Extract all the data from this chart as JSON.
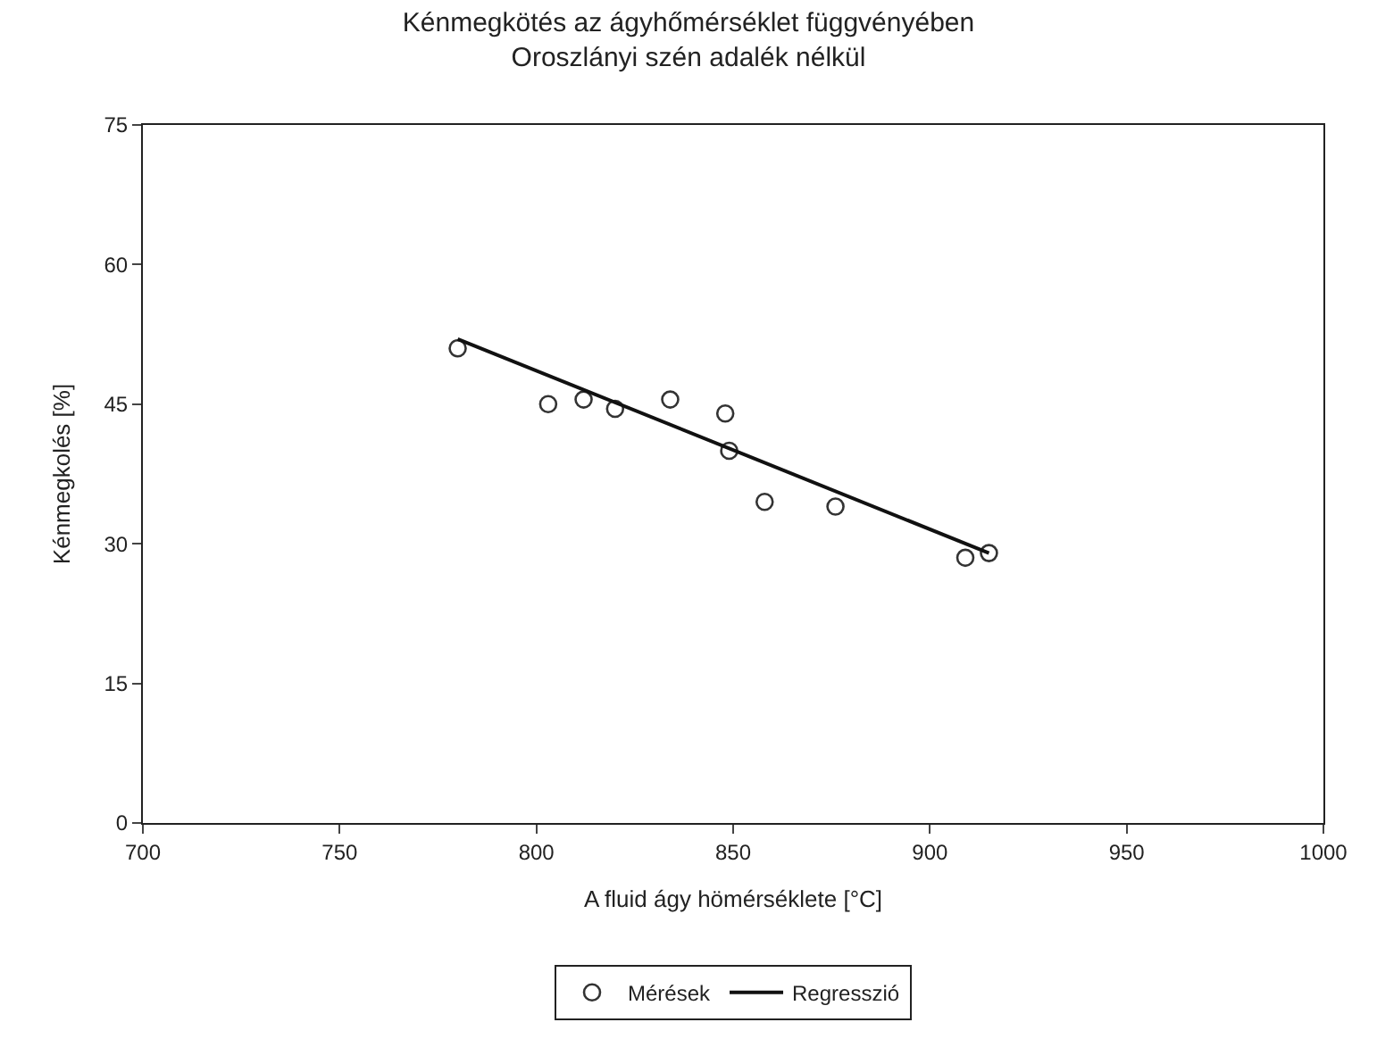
{
  "chart_data": {
    "type": "scatter",
    "title": "Kénmegkötés az ágyhőmérséklet függvényében",
    "subtitle": "Oroszlányi szén adalék nélkül",
    "xlabel": "A fluid ágy hömérséklete [°C]",
    "ylabel": "Kénmegkolés [%]",
    "xlim": [
      700,
      1000
    ],
    "xticks": [
      700,
      750,
      800,
      850,
      900,
      950,
      1000
    ],
    "ylim": [
      0,
      75
    ],
    "yticks": [
      0,
      15,
      30,
      45,
      60,
      75
    ],
    "legend": "bottom",
    "series": [
      {
        "name": "Mérések",
        "marker": "circle",
        "color": "#333333",
        "x": [
          780,
          803,
          812,
          820,
          834,
          848,
          849,
          858,
          876,
          909,
          915
        ],
        "values": [
          51,
          45,
          45.5,
          44.5,
          45.5,
          44,
          40,
          34.5,
          34,
          28.5,
          29
        ]
      },
      {
        "name": "Regresszió",
        "type": "line",
        "color": "#111111",
        "x": [
          780,
          915
        ],
        "values": [
          52,
          29
        ]
      }
    ]
  }
}
